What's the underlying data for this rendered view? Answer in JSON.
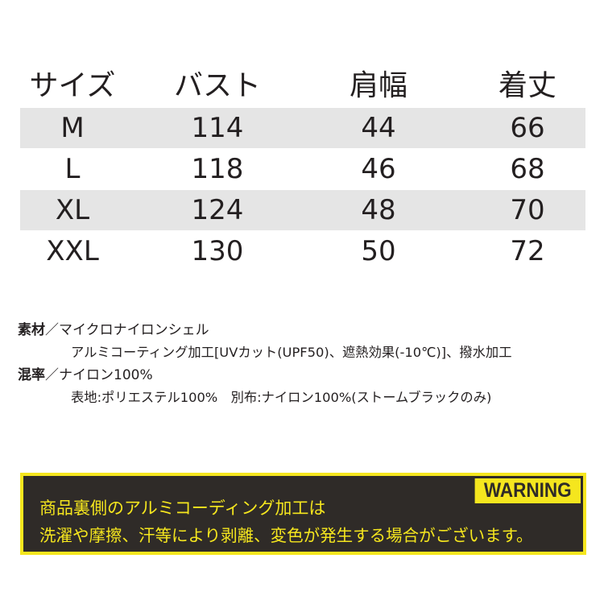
{
  "table": {
    "headers": [
      "サイズ",
      "バスト",
      "肩幅",
      "着丈"
    ],
    "rows": [
      [
        "M",
        "114",
        "44",
        "66"
      ],
      [
        "L",
        "118",
        "46",
        "68"
      ],
      [
        "XL",
        "124",
        "48",
        "70"
      ],
      [
        "XXL",
        "130",
        "50",
        "72"
      ]
    ]
  },
  "material": {
    "label1": "素材",
    "sep": "／",
    "line1": "マイクロナイロンシェル",
    "line2": "アルミコーティング加工[UVカット(UPF50)、遮熱効果(-10℃)]、撥水加工",
    "label2": "混率",
    "line3": "ナイロン100%",
    "line4": "表地:ポリエステル100%　別布:ナイロン100%(ストームブラックのみ)"
  },
  "warning": {
    "tag": "WARNING",
    "line1": "商品裏側のアルミコーディング加工は",
    "line2": "洗濯や摩擦、汗等により剥離、変色が発生する場合がございます。",
    "colors": {
      "yellow": "#f5e61e",
      "background": "#2f2b28"
    }
  }
}
